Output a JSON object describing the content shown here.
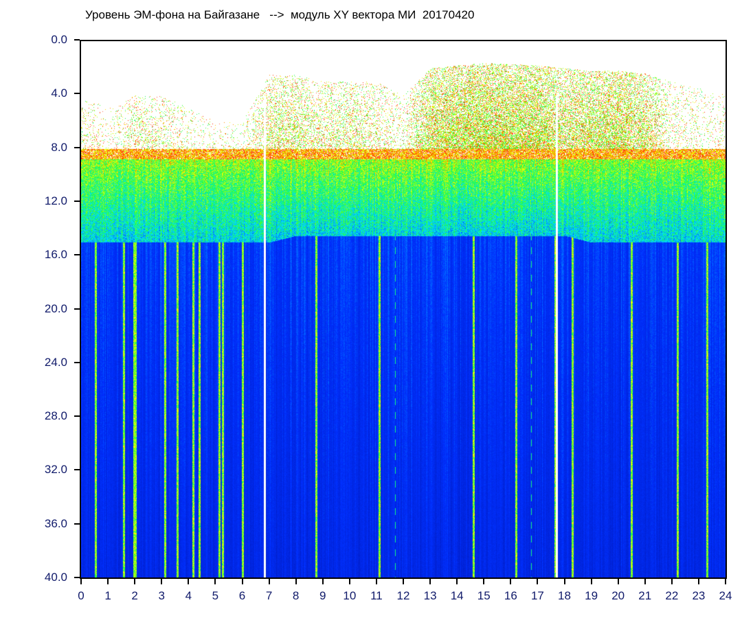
{
  "chart_data": {
    "type": "heatmap",
    "title": "Уровень ЭМ-фона на Байгазане   -->  модуль XY вектора МИ  20170420",
    "xlabel": "",
    "ylabel": "",
    "xlim": [
      0,
      24
    ],
    "ylim": [
      0,
      40
    ],
    "y_inverted": true,
    "x_ticks": [
      "0",
      "1",
      "2",
      "3",
      "4",
      "5",
      "6",
      "7",
      "8",
      "9",
      "10",
      "11",
      "12",
      "13",
      "14",
      "15",
      "16",
      "17",
      "18",
      "19",
      "20",
      "21",
      "22",
      "23",
      "24"
    ],
    "y_ticks": [
      "0.0",
      "4.0",
      "8.0",
      "12.0",
      "16.0",
      "20.0",
      "24.0",
      "28.0",
      "32.0",
      "36.0",
      "40.0"
    ],
    "colorscale": [
      "#0010a0",
      "#0030ff",
      "#00e0ff",
      "#20ff40",
      "#ffff00",
      "#ff2000",
      "#ffffff"
    ],
    "hourly_profile": {
      "hours": [
        0,
        1,
        2,
        3,
        4,
        5,
        6,
        7,
        8,
        9,
        10,
        11,
        12,
        13,
        14,
        15,
        16,
        17,
        18,
        19,
        20,
        21,
        22,
        23,
        24
      ],
      "noise_top": [
        4,
        5,
        4,
        4,
        5,
        6,
        6,
        2.5,
        2.5,
        3,
        3,
        3,
        4,
        2,
        1.8,
        1.6,
        1.7,
        1.8,
        2,
        2.2,
        2.2,
        2.4,
        3,
        3.5,
        4
      ],
      "upper_density": [
        0.15,
        0.08,
        0.2,
        0.2,
        0.1,
        0.06,
        0.08,
        0.35,
        0.35,
        0.25,
        0.3,
        0.25,
        0.1,
        0.6,
        0.7,
        0.75,
        0.7,
        0.7,
        0.5,
        0.6,
        0.65,
        0.5,
        0.15,
        0.1,
        0.1
      ],
      "band_end": [
        15,
        15,
        15,
        15,
        15,
        15,
        15,
        15,
        14.5,
        14.5,
        14.5,
        14.5,
        14.5,
        14.5,
        14.5,
        14.5,
        14.5,
        14.5,
        14.5,
        15,
        15,
        15,
        15,
        15,
        15
      ]
    },
    "bright_lines": [
      0.55,
      1.58,
      1.97,
      2.03,
      3.12,
      3.57,
      4.18,
      4.4,
      5.15,
      5.28,
      6.0,
      8.75,
      11.1,
      14.6,
      16.2,
      17.65,
      18.3,
      20.5,
      22.2,
      23.3
    ],
    "gap_lines": [
      6.82,
      17.7
    ],
    "dashed_lines": [
      11.7,
      16.75
    ]
  }
}
